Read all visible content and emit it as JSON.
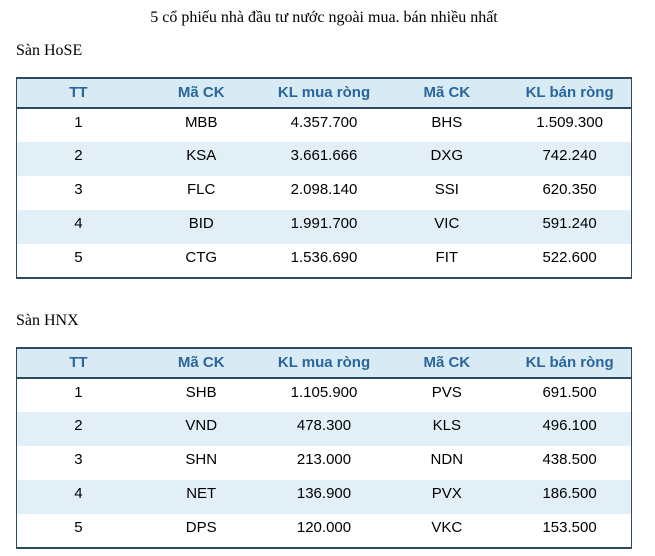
{
  "title": "5 cổ phiếu nhà đầu tư nước ngoài mua. bán nhiều nhất",
  "colors": {
    "header_bg": "#d8eaf3",
    "header_text": "#2a669c",
    "stripe_bg": "#e2eff6",
    "border_color": "#2c4b63",
    "text_color": "#000000",
    "page_bg": "#ffffff"
  },
  "sections": [
    {
      "label": "Sàn HoSE",
      "columns": [
        "TT",
        "Mã CK",
        "KL mua ròng",
        "Mã CK",
        "KL bán ròng"
      ],
      "rows": [
        [
          "1",
          "MBB",
          "4.357.700",
          "BHS",
          "1.509.300"
        ],
        [
          "2",
          "KSA",
          "3.661.666",
          "DXG",
          "742.240"
        ],
        [
          "3",
          "FLC",
          "2.098.140",
          "SSI",
          "620.350"
        ],
        [
          "4",
          "BID",
          "1.991.700",
          "VIC",
          "591.240"
        ],
        [
          "5",
          "CTG",
          "1.536.690",
          "FIT",
          "522.600"
        ]
      ]
    },
    {
      "label": "Sàn HNX",
      "columns": [
        "TT",
        "Mã CK",
        "KL mua ròng",
        "Mã CK",
        "KL bán ròng"
      ],
      "rows": [
        [
          "1",
          "SHB",
          "1.105.900",
          "PVS",
          "691.500"
        ],
        [
          "2",
          "VND",
          "478.300",
          "KLS",
          "496.100"
        ],
        [
          "3",
          "SHN",
          "213.000",
          "NDN",
          "438.500"
        ],
        [
          "4",
          "NET",
          "136.900",
          "PVX",
          "186.500"
        ],
        [
          "5",
          "DPS",
          "120.000",
          "VKC",
          "153.500"
        ]
      ]
    }
  ]
}
